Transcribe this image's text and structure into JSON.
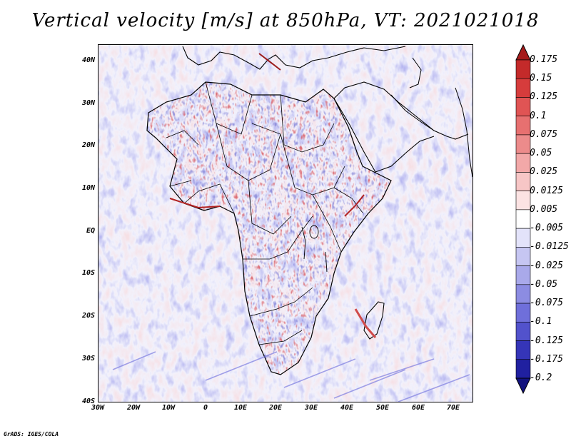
{
  "title": "Vertical velocity [m/s] at 850hPa, VT: 2021021018",
  "credit": "GrADS: IGES/COLA",
  "map": {
    "variable": "Vertical velocity",
    "units": "m/s",
    "level": "850hPa",
    "valid_time": "2021021018",
    "lat_labels": [
      "40N",
      "30N",
      "20N",
      "10N",
      "EQ",
      "10S",
      "20S",
      "30S",
      "40S"
    ],
    "lon_labels": [
      "30W",
      "20W",
      "10W",
      "0",
      "10E",
      "20E",
      "30E",
      "40E",
      "50E",
      "60E",
      "70E"
    ]
  },
  "colorbar": {
    "labels": [
      "0.175",
      "0.15",
      "0.125",
      "0.1",
      "0.075",
      "0.05",
      "0.025",
      "0.0125",
      "0.005",
      "-0.005",
      "-0.0125",
      "-0.025",
      "-0.05",
      "-0.075",
      "-0.1",
      "-0.125",
      "-0.175",
      "-0.2"
    ],
    "colors": [
      "#a51b1b",
      "#c42a2a",
      "#d63c3c",
      "#e05454",
      "#e77070",
      "#ec8b8b",
      "#f2a8a8",
      "#f7c6c6",
      "#fce3e3",
      "#ffffff",
      "#e3e3fa",
      "#c6c6f2",
      "#a9a9ea",
      "#8c8ce2",
      "#6f6fda",
      "#5252cc",
      "#3535b8",
      "#2020a0",
      "#12127e"
    ]
  }
}
